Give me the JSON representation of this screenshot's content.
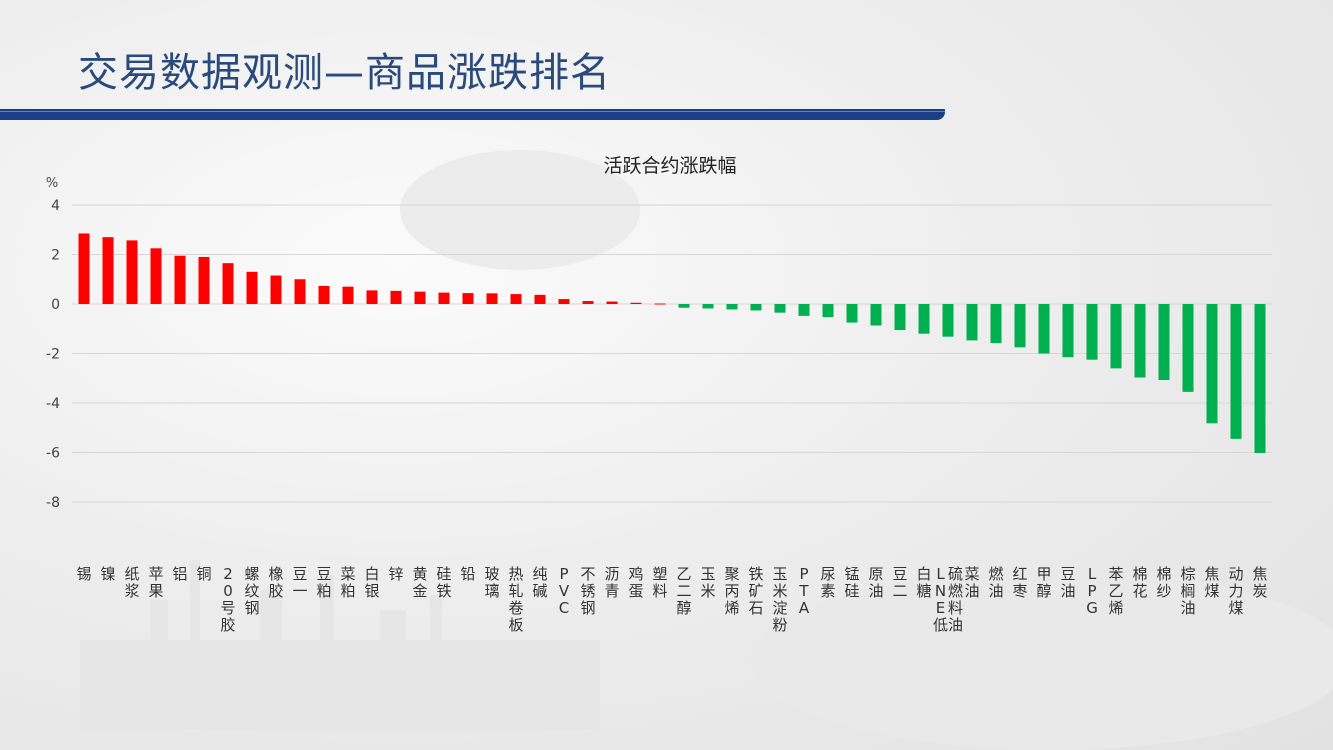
{
  "slide": {
    "title": "交易数据观测—商品涨跌排名"
  },
  "chart_data": {
    "type": "bar",
    "title": "活跃合约涨跌幅",
    "unit_label": "%",
    "ylim": [
      -8,
      4
    ],
    "yticks": [
      4,
      2,
      0,
      -2,
      -4,
      -6,
      -8
    ],
    "grid": true,
    "legend": "none",
    "colors": {
      "positive": "#ff0000",
      "negative": "#00b050"
    },
    "categories": [
      "锡",
      "镍",
      "纸浆",
      "苹果",
      "铝",
      "铜",
      "20号胶",
      "螺纹钢",
      "橡胶",
      "豆一",
      "豆粕",
      "菜粕",
      "白银",
      "锌",
      "黄金",
      "硅铁",
      "铅",
      "玻璃",
      "热轧卷板",
      "纯碱",
      "PVC",
      "不锈钢",
      "沥青",
      "鸡蛋",
      "塑料",
      "乙二醇",
      "玉米",
      "聚丙烯",
      "铁矿石",
      "玉米淀粉",
      "PTA",
      "尿素",
      "锰硅",
      "原油",
      "豆二",
      "白糖",
      "LNE低硫燃料油",
      "菜油",
      "燃油",
      "红枣",
      "甲醇",
      "豆油",
      "LPG",
      "苯乙烯",
      "棉花",
      "棉纱",
      "棕榈油",
      "焦煤",
      "动力煤",
      "焦炭"
    ],
    "values": [
      2.85,
      2.7,
      2.57,
      2.25,
      1.95,
      1.9,
      1.65,
      1.3,
      1.15,
      1.0,
      0.73,
      0.7,
      0.55,
      0.53,
      0.5,
      0.46,
      0.44,
      0.43,
      0.4,
      0.37,
      0.2,
      0.12,
      0.1,
      0.05,
      0.02,
      -0.15,
      -0.18,
      -0.22,
      -0.26,
      -0.35,
      -0.48,
      -0.53,
      -0.75,
      -0.87,
      -1.05,
      -1.2,
      -1.32,
      -1.47,
      -1.58,
      -1.75,
      -2.0,
      -2.15,
      -2.25,
      -2.6,
      -2.97,
      -3.07,
      -3.55,
      -4.82,
      -5.45,
      -6.02
    ]
  }
}
